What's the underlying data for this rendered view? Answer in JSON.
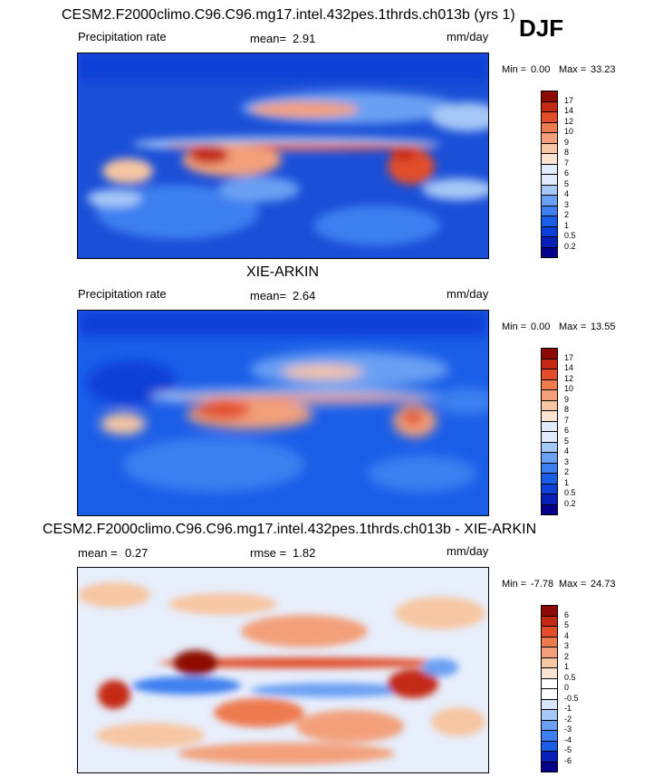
{
  "header": {
    "season": "DJF",
    "panel1_title": "CESM2.F2000climo.C96.C96.mg17.intel.432pes.1thrds.ch013b (yrs 1)",
    "panel2_title": "XIE-ARKIN",
    "panel3_title": "CESM2.F2000climo.C96.C96.mg17.intel.432pes.1thrds.ch013b - XIE-ARKIN"
  },
  "colors": {
    "precip": [
      "#04008c",
      "#0a1fb8",
      "#0e3fd6",
      "#1a5ee8",
      "#3d7ff0",
      "#6aa0f3",
      "#a6c8f7",
      "#e0ecfb",
      "#fbe4d2",
      "#f7c6a2",
      "#f3a07a",
      "#ee7a50",
      "#e24d2a",
      "#c42a13",
      "#8e0a05"
    ],
    "diff": [
      "#04008c",
      "#0a1fb8",
      "#1a5ee8",
      "#3d7ff0",
      "#6aa0f3",
      "#a6c8f7",
      "#d8e6fb",
      "#ffffff",
      "#fbe4d2",
      "#f7c6a2",
      "#f3a07a",
      "#ee7a50",
      "#e24d2a",
      "#c42a13",
      "#8e0a05"
    ]
  },
  "chart_data": [
    {
      "type": "heatmap",
      "title": "CESM2.F2000climo.C96.C96.mg17.intel.432pes.1thrds.ch013b (yrs 1)",
      "left_label": "Precipitation rate",
      "mean_label": "mean=",
      "mean_value": "2.91",
      "units": "mm/day",
      "min_label": "Min =",
      "min_value": "0.00",
      "max_label": "Max =",
      "max_value": "33.23",
      "colorbar_levels": [
        "17",
        "14",
        "12",
        "10",
        "9",
        "8",
        "7",
        "6",
        "5",
        "4",
        "3",
        "2",
        "1",
        "0.5",
        "0.2"
      ],
      "palette": "precip"
    },
    {
      "type": "heatmap",
      "title": "XIE-ARKIN",
      "left_label": "Precipitation rate",
      "mean_label": "mean=",
      "mean_value": "2.64",
      "units": "mm/day",
      "min_label": "Min =",
      "min_value": "0.00",
      "max_label": "Max =",
      "max_value": "13.55",
      "colorbar_levels": [
        "17",
        "14",
        "12",
        "10",
        "9",
        "8",
        "7",
        "6",
        "5",
        "4",
        "3",
        "2",
        "1",
        "0.5",
        "0.2"
      ],
      "palette": "precip"
    },
    {
      "type": "heatmap",
      "title": "CESM2.F2000climo.C96.C96.mg17.intel.432pes.1thrds.ch013b - XIE-ARKIN",
      "mean_label": "mean =",
      "mean_value": "0.27",
      "rmse_label": "rmse =",
      "rmse_value": "1.82",
      "units": "mm/day",
      "min_label": "Min =",
      "min_value": "-7.78",
      "max_label": "Max =",
      "max_value": "24.73",
      "colorbar_levels": [
        "6",
        "5",
        "4",
        "3",
        "2",
        "1",
        "0.5",
        "0",
        "-0.5",
        "-1",
        "-2",
        "-3",
        "-4",
        "-5",
        "-6"
      ],
      "palette": "diff"
    }
  ]
}
